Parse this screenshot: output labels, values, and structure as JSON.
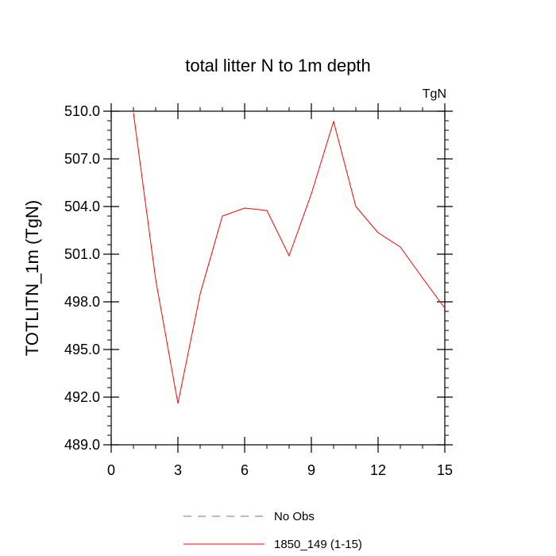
{
  "chart_data": {
    "type": "line",
    "title": "total litter N to 1m depth",
    "units_label": "TgN",
    "xlabel": "",
    "ylabel": "TOTLITN_1m  (TgN)",
    "xlim": [
      0,
      15
    ],
    "ylim": [
      489.0,
      510.0
    ],
    "x_ticks": [
      0,
      3,
      6,
      9,
      12,
      15
    ],
    "y_ticks": [
      489.0,
      492.0,
      495.0,
      498.0,
      501.0,
      504.0,
      507.0,
      510.0
    ],
    "y_tick_labels": [
      "489.0",
      "492.0",
      "495.0",
      "498.0",
      "501.0",
      "504.0",
      "507.0",
      "510.0"
    ],
    "grid": false,
    "legend_position": "bottom",
    "series": [
      {
        "name": "No Obs",
        "color": "#6a6af0",
        "dash": true,
        "x": [],
        "values": []
      },
      {
        "name": "1850_149 (1-15)",
        "color": "#ff0000",
        "dash": false,
        "x": [
          1,
          2,
          3,
          4,
          5,
          6,
          7,
          8,
          9,
          10,
          11,
          12,
          13,
          14,
          15
        ],
        "values": [
          509.9,
          499.4,
          491.6,
          498.5,
          503.4,
          503.9,
          503.75,
          500.9,
          504.8,
          509.35,
          504.0,
          502.35,
          501.45,
          499.5,
          497.6
        ]
      }
    ]
  }
}
